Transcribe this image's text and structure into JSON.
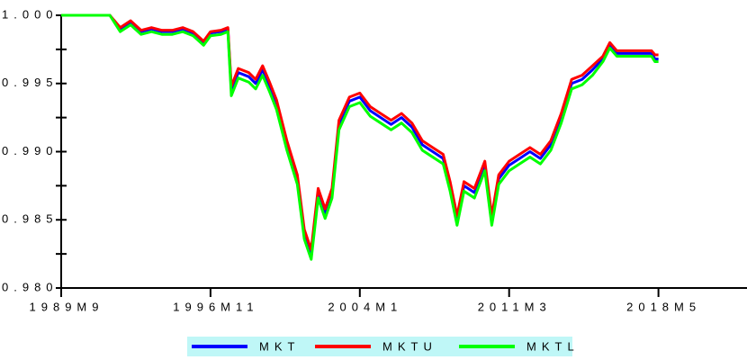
{
  "chart_data": {
    "type": "line",
    "x": [
      "1989M9",
      "1992M1",
      "1992M7",
      "1993M1",
      "1993M7",
      "1994M1",
      "1994M7",
      "1995M1",
      "1995M7",
      "1996M1",
      "1996M7",
      "1996M11",
      "1997M5",
      "1997M9",
      "1997M11",
      "1998M3",
      "1998M9",
      "1999M1",
      "1999M5",
      "1999M9",
      "2000M1",
      "2000M7",
      "2001M1",
      "2001M5",
      "2001M9",
      "2002M1",
      "2002M5",
      "2002M9",
      "2003M1",
      "2003M7",
      "2004M1",
      "2004M7",
      "2005M1",
      "2005M7",
      "2006M1",
      "2006M7",
      "2007M1",
      "2007M7",
      "2008M1",
      "2008M5",
      "2008M9",
      "2009M1",
      "2009M7",
      "2010M1",
      "2010M5",
      "2010M9",
      "2011M3",
      "2011M9",
      "2012M3",
      "2012M9",
      "2013M3",
      "2013M9",
      "2014M3",
      "2014M9",
      "2015M3",
      "2015M9",
      "2016M1",
      "2016M5",
      "2017M1",
      "2017M9",
      "2018M1",
      "2018M3",
      "2018M5"
    ],
    "series": [
      {
        "name": "MKT",
        "color": "#0000ff",
        "values": [
          1.0,
          1.0,
          0.999,
          0.9995,
          0.9988,
          0.999,
          0.9988,
          0.9988,
          0.999,
          0.9987,
          0.998,
          0.9987,
          0.9988,
          0.999,
          0.9945,
          0.9958,
          0.9955,
          0.995,
          0.996,
          0.9948,
          0.9935,
          0.9905,
          0.988,
          0.984,
          0.9825,
          0.987,
          0.9855,
          0.987,
          0.992,
          0.9937,
          0.994,
          0.993,
          0.9925,
          0.992,
          0.9925,
          0.9918,
          0.9905,
          0.99,
          0.9895,
          0.9875,
          0.985,
          0.9875,
          0.987,
          0.989,
          0.985,
          0.988,
          0.989,
          0.9895,
          0.99,
          0.9895,
          0.9905,
          0.9925,
          0.995,
          0.9953,
          0.996,
          0.9968,
          0.9978,
          0.9972,
          0.9972,
          0.9972,
          0.9972,
          0.9968,
          0.9968
        ]
      },
      {
        "name": "MKTU",
        "color": "#ff0000",
        "values": [
          1.0,
          1.0,
          0.9991,
          0.9996,
          0.9989,
          0.9991,
          0.9989,
          0.9989,
          0.9991,
          0.9988,
          0.9981,
          0.9988,
          0.9989,
          0.9991,
          0.9948,
          0.9961,
          0.9958,
          0.9953,
          0.9963,
          0.9951,
          0.9938,
          0.9908,
          0.9883,
          0.9843,
          0.9828,
          0.9873,
          0.9858,
          0.9873,
          0.9923,
          0.994,
          0.9943,
          0.9933,
          0.9928,
          0.9923,
          0.9928,
          0.9921,
          0.9908,
          0.9903,
          0.9898,
          0.9878,
          0.9853,
          0.9878,
          0.9873,
          0.9893,
          0.9853,
          0.9883,
          0.9893,
          0.9898,
          0.9903,
          0.9898,
          0.9908,
          0.9928,
          0.9953,
          0.9956,
          0.9963,
          0.997,
          0.998,
          0.9974,
          0.9974,
          0.9974,
          0.9974,
          0.9971,
          0.9971
        ]
      },
      {
        "name": "MKTL",
        "color": "#00ff00",
        "values": [
          1.0,
          1.0,
          0.9988,
          0.9993,
          0.9986,
          0.9988,
          0.9986,
          0.9986,
          0.9988,
          0.9985,
          0.9978,
          0.9985,
          0.9986,
          0.9988,
          0.9941,
          0.9954,
          0.9951,
          0.9946,
          0.9956,
          0.9944,
          0.9931,
          0.9901,
          0.9876,
          0.9836,
          0.9821,
          0.9866,
          0.9851,
          0.9866,
          0.9916,
          0.9933,
          0.9936,
          0.9926,
          0.9921,
          0.9916,
          0.9921,
          0.9914,
          0.9901,
          0.9896,
          0.9891,
          0.9871,
          0.9846,
          0.9871,
          0.9866,
          0.9886,
          0.9846,
          0.9876,
          0.9886,
          0.9891,
          0.9896,
          0.9891,
          0.9901,
          0.9921,
          0.9946,
          0.9949,
          0.9956,
          0.9966,
          0.9976,
          0.997,
          0.997,
          0.997,
          0.997,
          0.9966,
          0.9966
        ]
      }
    ],
    "xlim": [
      "1989M9",
      "2022M8"
    ],
    "xticks": [
      "1989M9",
      "1996M11",
      "2004M1",
      "2011M3",
      "2018M5"
    ],
    "ylim": [
      0.98,
      1.0
    ],
    "yticks": [
      {
        "value": 0.98,
        "label": "0.980"
      },
      {
        "value": 0.985,
        "label": "0.985"
      },
      {
        "value": 0.99,
        "label": "0.990"
      },
      {
        "value": 0.995,
        "label": "0.995"
      },
      {
        "value": 1.0,
        "label": "1.000"
      }
    ],
    "yminorticks": [
      0.9825,
      0.9875,
      0.9925,
      0.9975
    ],
    "legend_position": "bottom",
    "legend_background": "#bff7f7"
  }
}
